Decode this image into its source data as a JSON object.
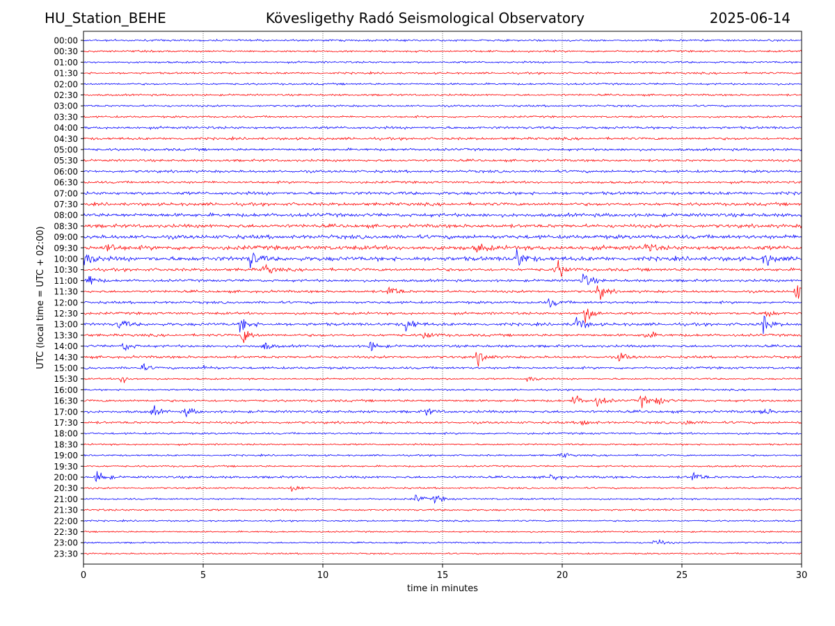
{
  "header": {
    "station": "HU_Station_BEHE",
    "observatory": "Kövesligethy Radó Seismological Observatory",
    "date": "2025-06-14"
  },
  "chart_data": {
    "type": "line",
    "title": "Kövesligethy Radó Seismological Observatory",
    "xlabel": "time in minutes",
    "ylabel": "UTC (local time = UTC + 02:00)",
    "xlim": [
      0,
      30
    ],
    "x_ticks": [
      0,
      5,
      10,
      15,
      20,
      25,
      30
    ],
    "y_ticks": [
      "00:00",
      "00:30",
      "01:00",
      "01:30",
      "02:00",
      "02:30",
      "03:00",
      "03:30",
      "04:00",
      "04:30",
      "05:00",
      "05:30",
      "06:00",
      "06:30",
      "07:00",
      "07:30",
      "08:00",
      "08:30",
      "09:00",
      "09:30",
      "10:00",
      "10:30",
      "11:00",
      "11:30",
      "12:00",
      "12:30",
      "13:00",
      "13:30",
      "14:00",
      "14:30",
      "15:00",
      "15:30",
      "16:00",
      "16:30",
      "17:00",
      "17:30",
      "18:00",
      "18:30",
      "19:00",
      "19:30",
      "20:00",
      "20:30",
      "21:00",
      "21:30",
      "22:00",
      "22:30",
      "23:00",
      "23:30"
    ],
    "grid": "vertical dotted at x ticks",
    "colors": {
      "even_rows": "#0000ff",
      "odd_rows": "#ff0000",
      "axis": "#000000",
      "grid": "#000000"
    },
    "noise_level": [
      1,
      1,
      1,
      1,
      1,
      1,
      1,
      1,
      1.3,
      1.3,
      1.3,
      1.2,
      1.3,
      1.2,
      1.6,
      1.6,
      1.8,
      1.8,
      2,
      2.2,
      2.2,
      1.5,
      1.3,
      1.3,
      1.3,
      1.3,
      1.5,
      1.3,
      1.3,
      1.3,
      1.2,
      0.9,
      0.9,
      1.2,
      1.3,
      1.2,
      1,
      0.9,
      0.9,
      0.9,
      1.2,
      0.9,
      0.9,
      1,
      0.8,
      0.8,
      0.8,
      0.8
    ],
    "events": [
      {
        "row": "09:30",
        "t": 1.0,
        "amp": 5
      },
      {
        "row": "09:30",
        "t": 16.5,
        "amp": 5
      },
      {
        "row": "09:30",
        "t": 23.5,
        "amp": 5
      },
      {
        "row": "10:00",
        "t": 0.1,
        "amp": 9
      },
      {
        "row": "10:00",
        "t": 7.0,
        "amp": 10
      },
      {
        "row": "10:00",
        "t": 18.1,
        "amp": 12
      },
      {
        "row": "10:00",
        "t": 28.5,
        "amp": 7
      },
      {
        "row": "10:30",
        "t": 7.6,
        "amp": 6
      },
      {
        "row": "10:30",
        "t": 19.8,
        "amp": 10
      },
      {
        "row": "11:00",
        "t": 0.2,
        "amp": 7
      },
      {
        "row": "11:00",
        "t": 20.9,
        "amp": 9
      },
      {
        "row": "11:30",
        "t": 12.8,
        "amp": 7
      },
      {
        "row": "11:30",
        "t": 21.5,
        "amp": 9
      },
      {
        "row": "11:30",
        "t": 29.8,
        "amp": 10
      },
      {
        "row": "12:00",
        "t": 19.5,
        "amp": 5
      },
      {
        "row": "12:30",
        "t": 21.0,
        "amp": 11
      },
      {
        "row": "12:30",
        "t": 28.5,
        "amp": 5
      },
      {
        "row": "13:00",
        "t": 1.5,
        "amp": 6
      },
      {
        "row": "13:00",
        "t": 6.6,
        "amp": 9
      },
      {
        "row": "13:00",
        "t": 13.5,
        "amp": 9
      },
      {
        "row": "13:00",
        "t": 20.6,
        "amp": 9
      },
      {
        "row": "13:00",
        "t": 28.4,
        "amp": 9
      },
      {
        "row": "13:30",
        "t": 6.7,
        "amp": 9
      },
      {
        "row": "13:30",
        "t": 14.3,
        "amp": 5
      },
      {
        "row": "13:30",
        "t": 23.5,
        "amp": 5
      },
      {
        "row": "14:00",
        "t": 1.7,
        "amp": 5
      },
      {
        "row": "14:00",
        "t": 7.5,
        "amp": 5
      },
      {
        "row": "14:00",
        "t": 12.0,
        "amp": 5
      },
      {
        "row": "14:30",
        "t": 16.5,
        "amp": 8
      },
      {
        "row": "14:30",
        "t": 22.4,
        "amp": 5
      },
      {
        "row": "15:00",
        "t": 2.4,
        "amp": 4
      },
      {
        "row": "15:00",
        "t": 5.0,
        "amp": 3
      },
      {
        "row": "15:30",
        "t": 1.6,
        "amp": 5
      },
      {
        "row": "15:30",
        "t": 18.6,
        "amp": 4
      },
      {
        "row": "16:30",
        "t": 20.5,
        "amp": 6
      },
      {
        "row": "16:30",
        "t": 21.5,
        "amp": 6
      },
      {
        "row": "16:30",
        "t": 23.3,
        "amp": 6
      },
      {
        "row": "16:30",
        "t": 24.0,
        "amp": 5
      },
      {
        "row": "17:00",
        "t": 2.9,
        "amp": 5
      },
      {
        "row": "17:00",
        "t": 4.3,
        "amp": 5
      },
      {
        "row": "17:00",
        "t": 14.3,
        "amp": 4
      },
      {
        "row": "17:00",
        "t": 28.4,
        "amp": 4
      },
      {
        "row": "17:30",
        "t": 20.8,
        "amp": 5
      },
      {
        "row": "17:30",
        "t": 25.1,
        "amp": 4
      },
      {
        "row": "19:00",
        "t": 20.0,
        "amp": 3
      },
      {
        "row": "20:00",
        "t": 0.6,
        "amp": 8
      },
      {
        "row": "20:00",
        "t": 19.5,
        "amp": 4
      },
      {
        "row": "20:00",
        "t": 25.5,
        "amp": 6
      },
      {
        "row": "20:30",
        "t": 8.7,
        "amp": 4
      },
      {
        "row": "21:00",
        "t": 13.9,
        "amp": 4
      },
      {
        "row": "21:00",
        "t": 14.7,
        "amp": 4
      },
      {
        "row": "23:00",
        "t": 23.9,
        "amp": 5
      }
    ]
  }
}
